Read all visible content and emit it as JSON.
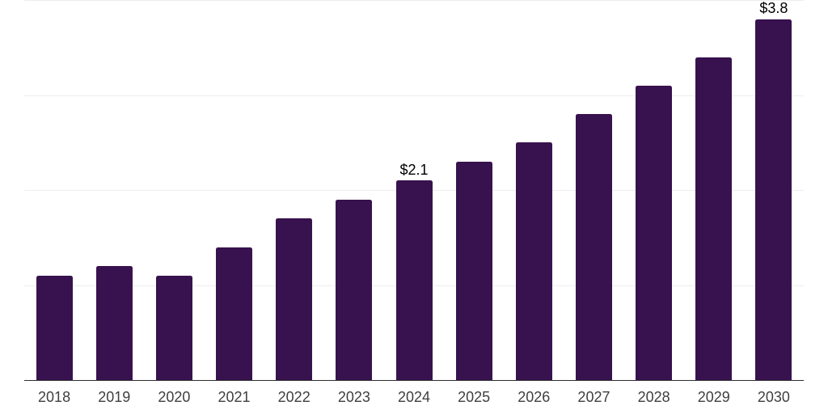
{
  "chart_data": {
    "type": "bar",
    "categories": [
      "2018",
      "2019",
      "2020",
      "2021",
      "2022",
      "2023",
      "2024",
      "2025",
      "2026",
      "2027",
      "2028",
      "2029",
      "2030"
    ],
    "values": [
      1.1,
      1.2,
      1.1,
      1.4,
      1.7,
      1.9,
      2.1,
      2.3,
      2.5,
      2.8,
      3.1,
      3.4,
      3.8
    ],
    "data_labels": {
      "2024": "$2.1",
      "2030": "$3.8"
    },
    "ylim": [
      0,
      4
    ],
    "grid": true,
    "legend": "none",
    "bar_color": "#38124E",
    "gridline_color": "#ededed",
    "axis_line_color": "#2e2e2e",
    "value_label_color": "#000000",
    "tick_label_color": "#3f3f3f"
  }
}
